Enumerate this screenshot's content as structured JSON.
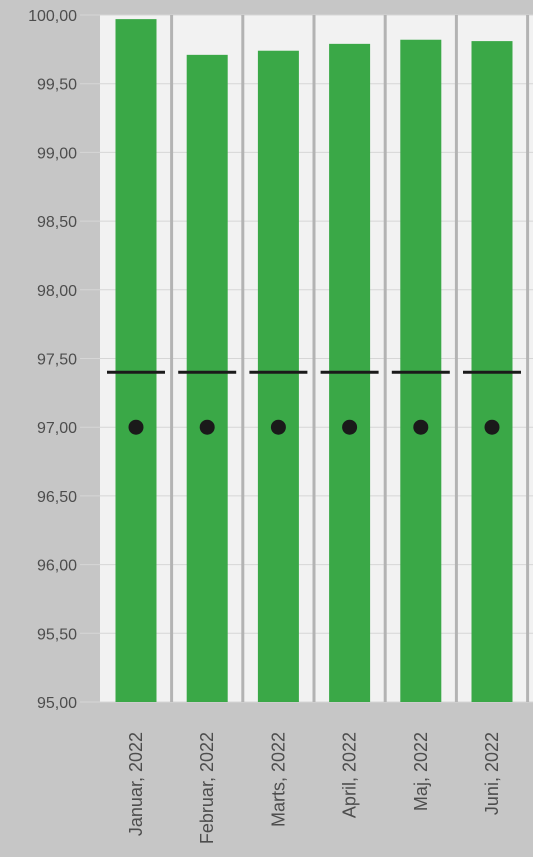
{
  "colors": {
    "page_background": "#c6c6c6",
    "plot_background": "#f2f2f2",
    "bar": "#3aa847",
    "separator": "#b3b3b3",
    "gridline": "#d6d6d6",
    "axis_text": "#4d4d4d",
    "target_line": "#1a1a1a",
    "marker": "#1a1a1a"
  },
  "chart_data": {
    "type": "bar",
    "categories": [
      "Januar, 2022",
      "Februar, 2022",
      "Marts, 2022",
      "April, 2022",
      "Maj, 2022",
      "Juni, 2022"
    ],
    "series": [
      {
        "values": [
          99.97,
          99.71,
          99.74,
          99.79,
          99.82,
          99.81
        ],
        "color": "#3aa847"
      }
    ],
    "overlays": [
      {
        "kind": "horizontal-line",
        "values": [
          97.4,
          97.4,
          97.4,
          97.4,
          97.4,
          97.4
        ]
      },
      {
        "kind": "dot",
        "values": [
          97.0,
          97.0,
          97.0,
          97.0,
          97.0,
          97.0
        ]
      }
    ],
    "ylim": [
      95,
      100
    ],
    "yticks": [
      95,
      95.5,
      96,
      96.5,
      97,
      97.5,
      98,
      98.5,
      99,
      99.5,
      100
    ],
    "ytick_labels": [
      "95,00",
      "95,50",
      "96,00",
      "96,50",
      "97,00",
      "97,50",
      "98,00",
      "98,50",
      "99,00",
      "99,50",
      "100,00"
    ],
    "xlabel": "",
    "ylabel": "",
    "grid": true,
    "legend": "none",
    "category_label_orientation": "vertical"
  }
}
